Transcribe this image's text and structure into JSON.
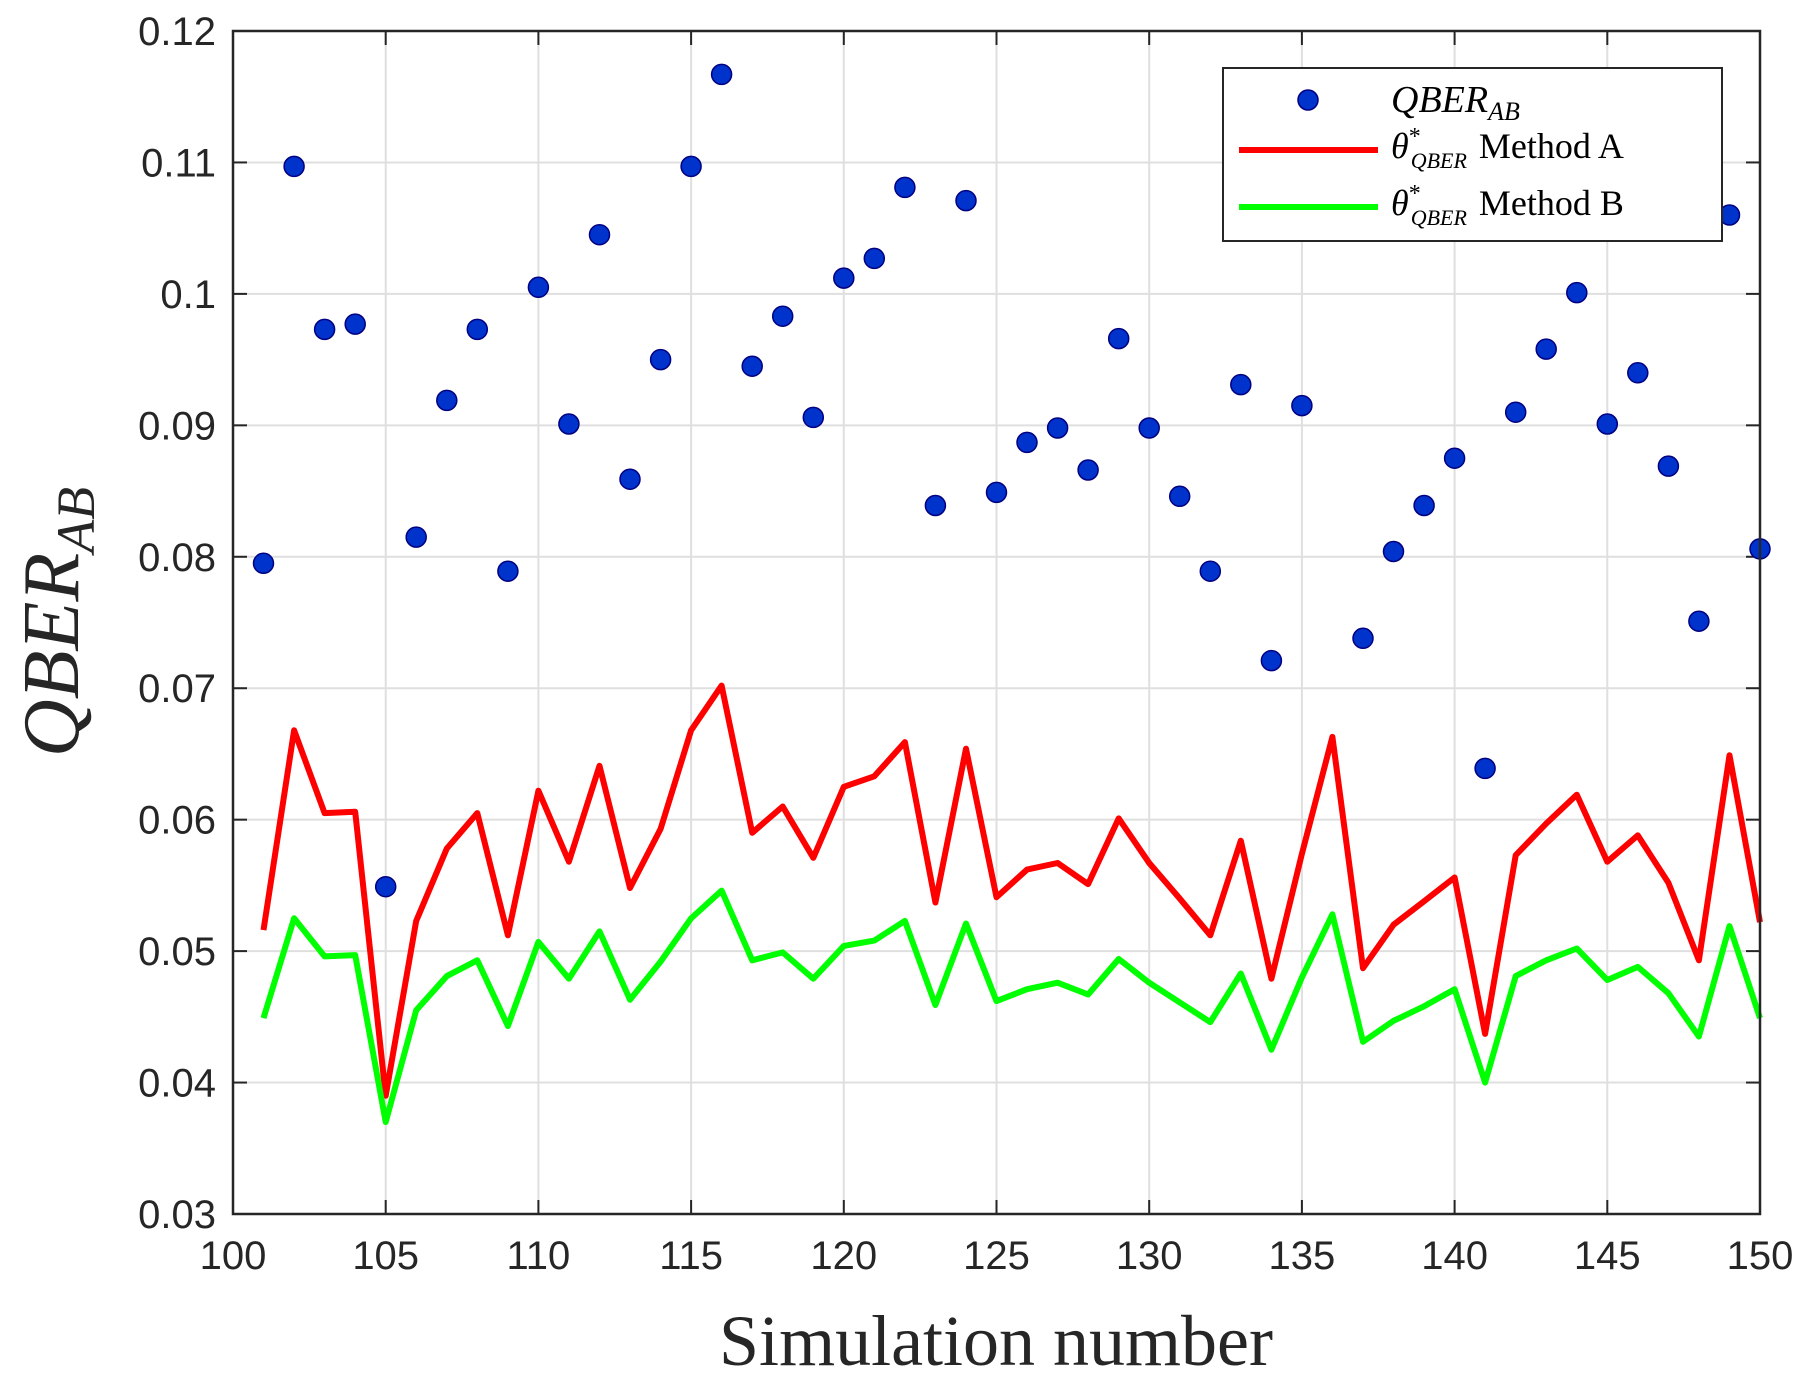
{
  "chart_data": {
    "type": "line",
    "title": "",
    "xlabel": "Simulation number",
    "ylabel": {
      "base": "QBER",
      "sub": "AB"
    },
    "xlim": [
      100,
      150
    ],
    "ylim": [
      0.03,
      0.12
    ],
    "xticks": [
      100,
      105,
      110,
      115,
      120,
      125,
      130,
      135,
      140,
      145,
      150
    ],
    "yticks": [
      0.03,
      0.04,
      0.05,
      0.06,
      0.07,
      0.08,
      0.09,
      0.1,
      0.11,
      0.12
    ],
    "xtick_labels": [
      "100",
      "105",
      "110",
      "115",
      "120",
      "125",
      "130",
      "135",
      "140",
      "145",
      "150"
    ],
    "ytick_labels": [
      "0.03",
      "0.04",
      "0.05",
      "0.06",
      "0.07",
      "0.08",
      "0.09",
      "0.1",
      "0.11",
      "0.12"
    ],
    "grid": true,
    "legend_position": "top-right",
    "x": [
      101,
      102,
      103,
      104,
      105,
      106,
      107,
      108,
      109,
      110,
      111,
      112,
      113,
      114,
      115,
      116,
      117,
      118,
      119,
      120,
      121,
      122,
      123,
      124,
      125,
      126,
      127,
      128,
      129,
      130,
      131,
      132,
      133,
      134,
      135,
      136,
      137,
      138,
      139,
      140,
      141,
      142,
      143,
      144,
      145,
      146,
      147,
      148,
      149,
      150
    ],
    "series": [
      {
        "name": "QBER_AB",
        "legend": {
          "base": "QBER",
          "sub": "AB"
        },
        "kind": "scatter",
        "color": "#0033cc",
        "values": [
          0.0795,
          0.1097,
          0.0973,
          0.0977,
          0.0549,
          0.0815,
          0.0919,
          0.0973,
          0.0789,
          0.1005,
          0.0901,
          0.1045,
          0.0859,
          0.095,
          0.1097,
          0.1167,
          0.0945,
          0.0983,
          0.0906,
          0.1012,
          0.1027,
          0.1081,
          0.0839,
          0.1071,
          0.0849,
          0.0887,
          0.0898,
          0.0866,
          0.0966,
          0.0898,
          0.0846,
          0.0789,
          0.0931,
          0.0721,
          0.0915,
          null,
          0.0738,
          0.0804,
          0.0839,
          0.0875,
          0.0639,
          0.091,
          0.0958,
          0.1001,
          0.0901,
          0.094,
          0.0869,
          0.0751,
          0.106,
          0.0806
        ]
      },
      {
        "name": "θ*QBER Method A",
        "legend": {
          "symbol": "θ",
          "sup": "*",
          "sub": "QBER",
          "text": "Method A"
        },
        "kind": "line",
        "color": "#ff0000",
        "values": [
          0.0516,
          0.0668,
          0.0605,
          0.0606,
          0.039,
          0.0523,
          0.0578,
          0.0605,
          0.0512,
          0.0622,
          0.0568,
          0.0641,
          0.0548,
          0.0593,
          0.0668,
          0.0702,
          0.059,
          0.061,
          0.0571,
          0.0625,
          0.0633,
          0.0659,
          0.0537,
          0.0654,
          0.0541,
          0.0562,
          0.0567,
          0.0551,
          0.0601,
          0.0567,
          0.054,
          0.0512,
          0.0584,
          0.0479,
          0.0574,
          0.0663,
          0.0487,
          0.052,
          0.0538,
          0.0556,
          0.0437,
          0.0573,
          0.0597,
          0.0619,
          0.0568,
          0.0588,
          0.0552,
          0.0493,
          0.0649,
          0.0522
        ]
      },
      {
        "name": "θ*QBER Method B",
        "legend": {
          "symbol": "θ",
          "sup": "*",
          "sub": "QBER",
          "text": "Method B"
        },
        "kind": "line",
        "color": "#00ff00",
        "values": [
          0.0449,
          0.0525,
          0.0496,
          0.0497,
          0.037,
          0.0455,
          0.0481,
          0.0493,
          0.0443,
          0.0507,
          0.0479,
          0.0515,
          0.0463,
          0.0492,
          0.0525,
          0.0546,
          0.0493,
          0.0499,
          0.0479,
          0.0504,
          0.0508,
          0.0523,
          0.0459,
          0.0521,
          0.0462,
          0.0471,
          0.0476,
          0.0467,
          0.0494,
          0.0476,
          0.0461,
          0.0446,
          0.0483,
          0.0425,
          0.048,
          0.0528,
          0.0431,
          0.0447,
          0.0458,
          0.0471,
          0.04,
          0.0481,
          0.0493,
          0.0502,
          0.0478,
          0.0488,
          0.0468,
          0.0435,
          0.0519,
          0.0449
        ]
      }
    ]
  }
}
